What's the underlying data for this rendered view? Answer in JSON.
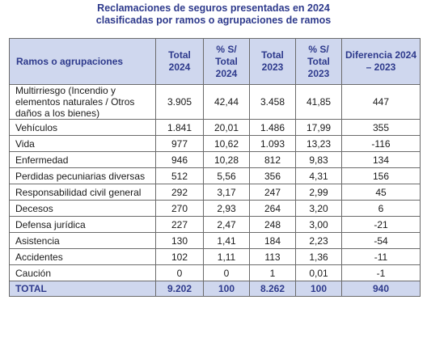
{
  "title": {
    "line1": "Reclamaciones de seguros presentadas en 2024",
    "line2": "clasificadas por ramos o agrupaciones de ramos"
  },
  "headers": [
    "Ramos o agrupaciones",
    "Total 2024",
    "% S/ Total 2024",
    "Total 2023",
    "% S/ Total 2023",
    "Diferencia 2024 – 2023"
  ],
  "rows": [
    {
      "name": "Multirriesgo (Incendio y elementos naturales / Otros daños a los bienes)",
      "t2024": "3.905",
      "p2024": "42,44",
      "t2023": "3.458",
      "p2023": "41,85",
      "diff": "447"
    },
    {
      "name": "Vehículos",
      "t2024": "1.841",
      "p2024": "20,01",
      "t2023": "1.486",
      "p2023": "17,99",
      "diff": "355"
    },
    {
      "name": "Vida",
      "t2024": "977",
      "p2024": "10,62",
      "t2023": "1.093",
      "p2023": "13,23",
      "diff": "-116"
    },
    {
      "name": "Enfermedad",
      "t2024": "946",
      "p2024": "10,28",
      "t2023": "812",
      "p2023": "9,83",
      "diff": "134"
    },
    {
      "name": "Perdidas pecuniarias diversas",
      "t2024": "512",
      "p2024": "5,56",
      "t2023": "356",
      "p2023": "4,31",
      "diff": "156"
    },
    {
      "name": "Responsabilidad civil general",
      "t2024": "292",
      "p2024": "3,17",
      "t2023": "247",
      "p2023": "2,99",
      "diff": "45"
    },
    {
      "name": "Decesos",
      "t2024": "270",
      "p2024": "2,93",
      "t2023": "264",
      "p2023": "3,20",
      "diff": "6"
    },
    {
      "name": "Defensa jurídica",
      "t2024": "227",
      "p2024": "2,47",
      "t2023": "248",
      "p2023": "3,00",
      "diff": "-21"
    },
    {
      "name": "Asistencia",
      "t2024": "130",
      "p2024": "1,41",
      "t2023": "184",
      "p2023": "2,23",
      "diff": "-54"
    },
    {
      "name": "Accidentes",
      "t2024": "102",
      "p2024": "1,11",
      "t2023": "113",
      "p2023": "1,36",
      "diff": "-11"
    },
    {
      "name": "Caución",
      "t2024": "0",
      "p2024": "0",
      "t2023": "1",
      "p2023": "0,01",
      "diff": "-1"
    }
  ],
  "total": {
    "name": "TOTAL",
    "t2024": "9.202",
    "p2024": "100",
    "t2023": "8.262",
    "p2023": "100",
    "diff": "940"
  }
}
